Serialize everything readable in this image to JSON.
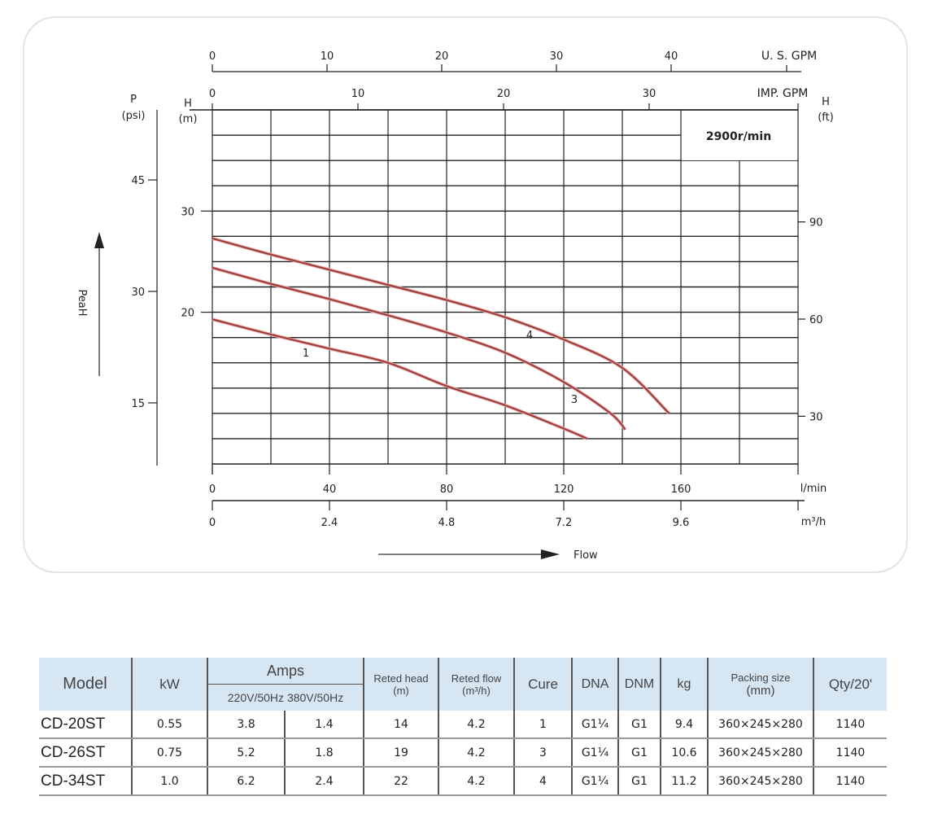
{
  "chart_data": {
    "type": "line",
    "speed_label": "2900r/min",
    "x": {
      "label": "l/min",
      "range": [
        0,
        200
      ],
      "ticks": [
        0,
        40,
        80,
        120,
        160
      ]
    },
    "x2": {
      "label": "m³/h",
      "tick_labels": [
        "0",
        "2.4",
        "4.8",
        "7.2",
        "9.6"
      ]
    },
    "x_top_us": {
      "label": "U. S. GPM",
      "ticks": [
        0,
        10,
        20,
        30,
        40
      ]
    },
    "x_top_imp": {
      "label": "IMP. GPM",
      "ticks": [
        0,
        10,
        20,
        30
      ]
    },
    "y": {
      "label": "H",
      "unit": "(m)",
      "range": [
        5,
        40
      ],
      "ticks": [
        20,
        30
      ]
    },
    "y_left_psi": {
      "label": "P",
      "unit": "(psi)",
      "ticks": [
        15,
        30,
        45
      ]
    },
    "y_right_ft": {
      "label": "H",
      "unit": "(ft)",
      "ticks": [
        30,
        60,
        90
      ]
    },
    "y_side_label": "PeaH",
    "flow_label": "Flow",
    "grid": true,
    "curve_color": "#9a3a3a",
    "series": [
      {
        "name": "1",
        "x": [
          0,
          20,
          40,
          60,
          80,
          100,
          120,
          128
        ],
        "y": [
          19.3,
          17.8,
          16.4,
          15.0,
          12.7,
          10.8,
          8.5,
          7.5
        ]
      },
      {
        "name": "3",
        "x": [
          0,
          20,
          40,
          60,
          80,
          100,
          120,
          136,
          141
        ],
        "y": [
          24.4,
          22.8,
          21.3,
          19.7,
          18.0,
          16.0,
          13.1,
          10.0,
          8.4
        ]
      },
      {
        "name": "4",
        "x": [
          0,
          20,
          40,
          60,
          80,
          100,
          120,
          140,
          156
        ],
        "y": [
          27.3,
          25.7,
          24.2,
          22.7,
          21.2,
          19.5,
          17.3,
          14.5,
          10.0
        ]
      }
    ]
  },
  "table": {
    "headers": {
      "model": "Model",
      "kw": "kW",
      "amps": "Amps",
      "amps_220": "220V/50Hz",
      "amps_380": "380V/50Hz",
      "head": "Reted head",
      "head_unit": "(m)",
      "flow": "Reted  flow",
      "flow_unit": "(m³/h)",
      "cure": "Cure",
      "dna": "DNA",
      "dnm": "DNM",
      "kg": "kg",
      "packing": "Packing size",
      "packing_unit": "(mm)",
      "qty": "Qty/20'"
    },
    "rows": [
      [
        "CD-20ST",
        "0.55",
        "3.8",
        "1.4",
        "14",
        "4.2",
        "1",
        "G1¼",
        "G1",
        "9.4",
        "360×245×280",
        "1140"
      ],
      [
        "CD-26ST",
        "0.75",
        "5.2",
        "1.8",
        "19",
        "4.2",
        "3",
        "G1¼",
        "G1",
        "10.6",
        "360×245×280",
        "1140"
      ],
      [
        "CD-34ST",
        "1.0",
        "6.2",
        "2.4",
        "22",
        "4.2",
        "4",
        "G1¼",
        "G1",
        "11.2",
        "360×245×280",
        "1140"
      ]
    ]
  }
}
